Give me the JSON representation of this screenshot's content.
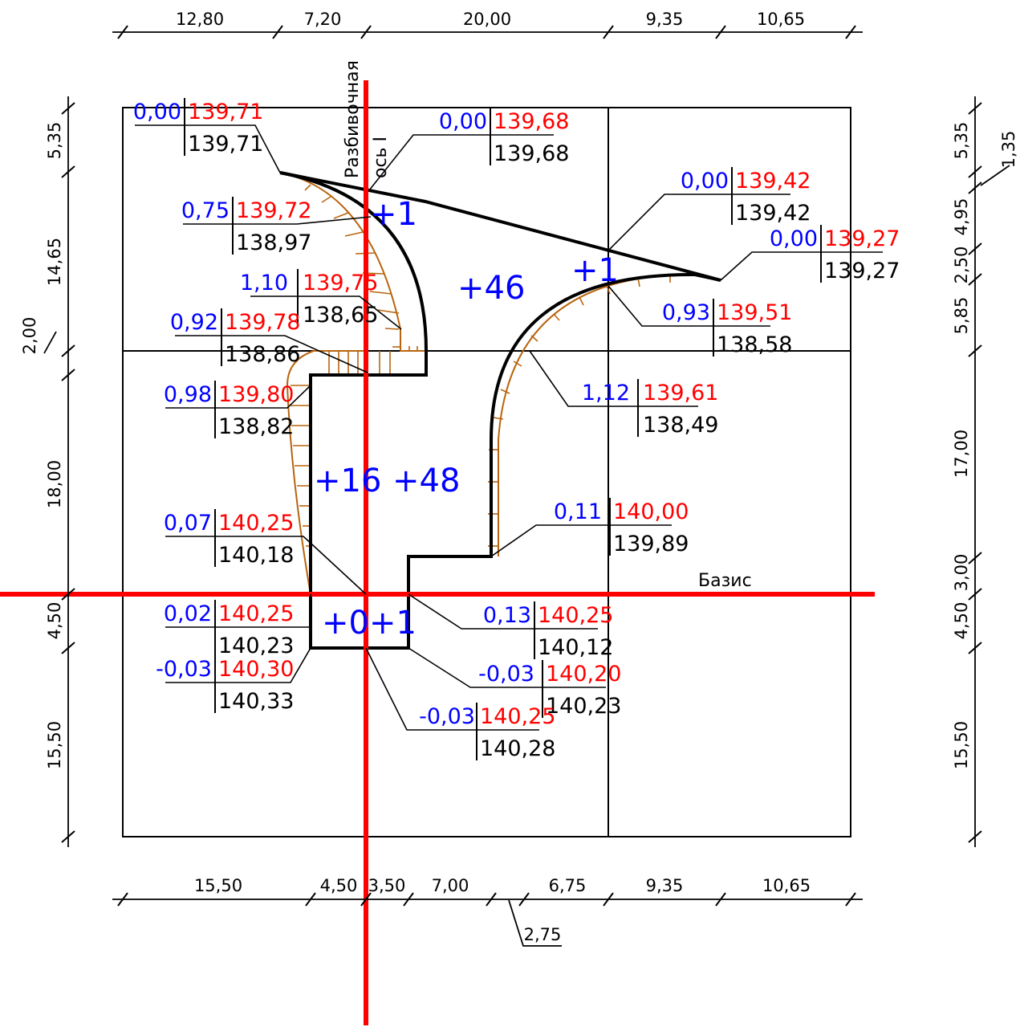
{
  "colors": {
    "cut": "#0000ff",
    "design": "#ff0000",
    "existing": "#000000",
    "axis": "#ff0000",
    "slope": "#b8640f"
  },
  "dims": {
    "top": [
      "12,80",
      "7,20",
      "20,00",
      "9,35",
      "10,65"
    ],
    "bottom": [
      "15,50",
      "4,50",
      "3,50",
      "7,00",
      "6,75",
      "9,35",
      "10,65"
    ],
    "bottom_extra": "2,75",
    "left": [
      "5,35",
      "14,65",
      "2,00",
      "18,00",
      "4,50",
      "15,50"
    ],
    "right": [
      "5,35",
      "1,35",
      "4,95",
      "2,50",
      "5,85",
      "17,00",
      "3,00",
      "4,50",
      "15,50"
    ]
  },
  "labels": {
    "axis_line1": "Разбивочная",
    "axis_line2": "ось I",
    "basis": "Базис"
  },
  "zones": [
    "+1",
    "+46",
    "+1",
    "+16",
    "+48",
    "+0",
    "+1"
  ],
  "points": [
    {
      "c": "0,00",
      "d": "139,71",
      "e": "139,71"
    },
    {
      "c": "0,00",
      "d": "139,68",
      "e": "139,68"
    },
    {
      "c": "0,75",
      "d": "139,72",
      "e": "138,97"
    },
    {
      "c": "0,00",
      "d": "139,42",
      "e": "139,42"
    },
    {
      "c": "0,00",
      "d": "139,27",
      "e": "139,27"
    },
    {
      "c": "1,10",
      "d": "139,75",
      "e": "138,65"
    },
    {
      "c": "0,93",
      "d": "139,51",
      "e": "138,58"
    },
    {
      "c": "0,92",
      "d": "139,78",
      "e": "138,86"
    },
    {
      "c": "1,12",
      "d": "139,61",
      "e": "138,49"
    },
    {
      "c": "0,98",
      "d": "139,80",
      "e": "138,82"
    },
    {
      "c": "0,11",
      "d": "140,00",
      "e": "139,89"
    },
    {
      "c": "0,07",
      "d": "140,25",
      "e": "140,18"
    },
    {
      "c": "0,13",
      "d": "140,25",
      "e": "140,12"
    },
    {
      "c": "0,02",
      "d": "140,25",
      "e": "140,23"
    },
    {
      "c": "-0,03",
      "d": "140,20",
      "e": "140,23"
    },
    {
      "c": "-0,03",
      "d": "140,30",
      "e": "140,33"
    },
    {
      "c": "-0,03",
      "d": "140,25",
      "e": "140,28"
    }
  ]
}
